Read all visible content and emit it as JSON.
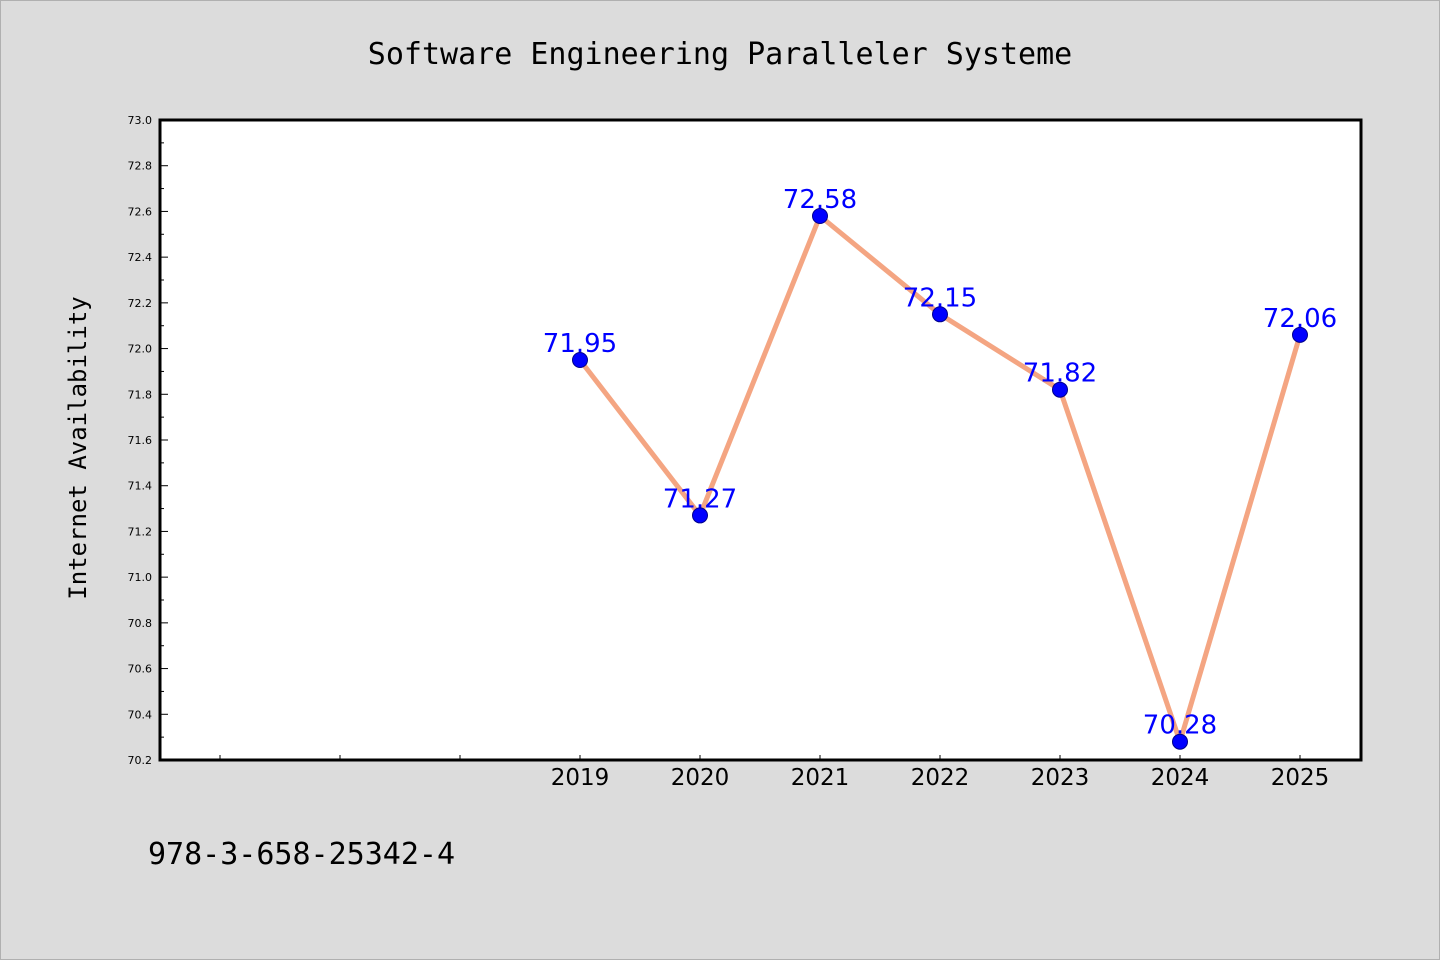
{
  "chart_data": {
    "type": "line",
    "title": "Software Engineering Paralleler Systeme",
    "xlabel": "",
    "ylabel": "Internet Availability",
    "categories": [
      "",
      "",
      "",
      "2019",
      "2020",
      "2021",
      "2022",
      "2023",
      "2024",
      "2025"
    ],
    "series": [
      {
        "values": [
          null,
          null,
          null,
          71.95,
          71.27,
          72.58,
          72.15,
          71.82,
          70.28,
          72.06
        ],
        "labels": [
          "",
          "",
          "",
          "71.95",
          "71.27",
          "72.58",
          "72.15",
          "71.82",
          "70.28",
          "72.06"
        ]
      }
    ],
    "ylim": [
      70.2,
      73.0
    ],
    "yticks": [
      "70.2",
      "70.4",
      "70.6",
      "70.8",
      "71.0",
      "71.2",
      "71.4",
      "71.6",
      "71.8",
      "72.0",
      "72.2",
      "72.4",
      "72.6",
      "72.8",
      "73.0"
    ],
    "ytick_values": [
      70.2,
      70.4,
      70.6,
      70.8,
      71.0,
      71.2,
      71.4,
      71.6,
      71.8,
      72.0,
      72.2,
      72.4,
      72.6,
      72.8,
      73.0
    ],
    "grid": false,
    "legend": "none"
  },
  "footnote": "978-3-658-25342-4",
  "colors": {
    "background": "#dcdcdc",
    "plot_background": "#ffffff",
    "line": "#f4a582",
    "marker": "#0000ff",
    "data_label": "#0000ff",
    "axis": "#000000"
  }
}
